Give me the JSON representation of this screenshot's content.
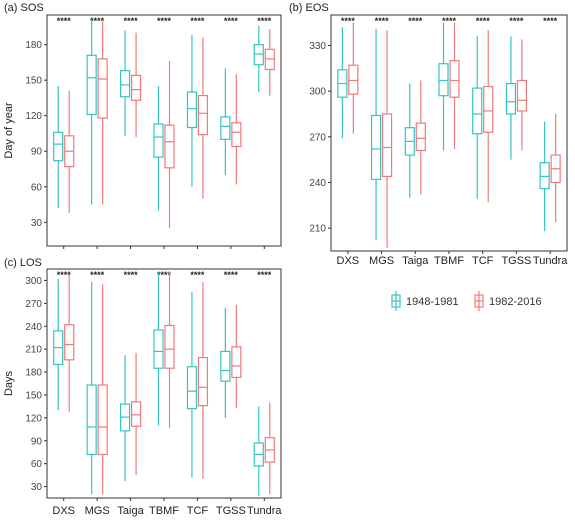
{
  "colors": {
    "series_1": "#35c4c4",
    "series_2": "#ef7b7b",
    "axis": "#333333",
    "grid": "#ebebeb"
  },
  "legend": {
    "items": [
      "1948-1981",
      "1982-2016"
    ]
  },
  "chart_data": [
    {
      "type": "boxplot",
      "title": "(a) SOS",
      "ylabel": "Day of year",
      "ylim": [
        10,
        205
      ],
      "yticks": [
        "30",
        "60",
        "90",
        "120",
        "150",
        "180"
      ],
      "categories": [
        "DXS",
        "MGS",
        "Taiga",
        "TBMF",
        "TCF",
        "TGSS",
        "Tundra"
      ],
      "show_x_ticklabels": false,
      "significance": [
        "****",
        "****",
        "****",
        "****",
        "****",
        "****",
        "****"
      ],
      "series": [
        {
          "name": "1948-1981",
          "boxes": [
            {
              "min": 42,
              "q1": 82,
              "median": 96,
              "q3": 106,
              "max": 145
            },
            {
              "min": 45,
              "q1": 121,
              "median": 152,
              "q3": 171,
              "max": 201
            },
            {
              "min": 103,
              "q1": 136,
              "median": 146,
              "q3": 158,
              "max": 192
            },
            {
              "min": 40,
              "q1": 85,
              "median": 102,
              "q3": 113,
              "max": 145
            },
            {
              "min": 60,
              "q1": 110,
              "median": 126,
              "q3": 140,
              "max": 188
            },
            {
              "min": 70,
              "q1": 100,
              "median": 111,
              "q3": 119,
              "max": 160
            },
            {
              "min": 140,
              "q1": 163,
              "median": 172,
              "q3": 180,
              "max": 196
            }
          ]
        },
        {
          "name": "1982-2016",
          "boxes": [
            {
              "min": 38,
              "q1": 77,
              "median": 90,
              "q3": 103,
              "max": 141
            },
            {
              "min": 45,
              "q1": 118,
              "median": 151,
              "q3": 168,
              "max": 200
            },
            {
              "min": 102,
              "q1": 133,
              "median": 142,
              "q3": 154,
              "max": 190
            },
            {
              "min": 25,
              "q1": 76,
              "median": 98,
              "q3": 112,
              "max": 166
            },
            {
              "min": 50,
              "q1": 104,
              "median": 122,
              "q3": 137,
              "max": 186
            },
            {
              "min": 62,
              "q1": 94,
              "median": 106,
              "q3": 114,
              "max": 155
            },
            {
              "min": 137,
              "q1": 159,
              "median": 168,
              "q3": 176,
              "max": 193
            }
          ]
        }
      ]
    },
    {
      "type": "boxplot",
      "title": "(b) EOS",
      "ylabel": "",
      "ylim": [
        195,
        350
      ],
      "yticks": [
        "210",
        "240",
        "270",
        "300",
        "330"
      ],
      "categories": [
        "DXS",
        "MGS",
        "Taiga",
        "TBMF",
        "TCF",
        "TGSS",
        "Tundra"
      ],
      "show_x_ticklabels": true,
      "significance": [
        "****",
        "****",
        "****",
        "****",
        "****",
        "****",
        "****"
      ],
      "series": [
        {
          "name": "1948-1981",
          "boxes": [
            {
              "min": 269,
              "q1": 296,
              "median": 305,
              "q3": 314,
              "max": 342
            },
            {
              "min": 202,
              "q1": 242,
              "median": 262,
              "q3": 284,
              "max": 341
            },
            {
              "min": 230,
              "q1": 258,
              "median": 267,
              "q3": 276,
              "max": 305
            },
            {
              "min": 261,
              "q1": 297,
              "median": 307,
              "q3": 318,
              "max": 345
            },
            {
              "min": 229,
              "q1": 272,
              "median": 285,
              "q3": 302,
              "max": 336
            },
            {
              "min": 255,
              "q1": 285,
              "median": 293,
              "q3": 305,
              "max": 336
            },
            {
              "min": 208,
              "q1": 236,
              "median": 244,
              "q3": 253,
              "max": 280
            }
          ]
        },
        {
          "name": "1982-2016",
          "boxes": [
            {
              "min": 272,
              "q1": 298,
              "median": 307,
              "q3": 317,
              "max": 345
            },
            {
              "min": 197,
              "q1": 244,
              "median": 263,
              "q3": 285,
              "max": 340
            },
            {
              "min": 232,
              "q1": 261,
              "median": 269,
              "q3": 279,
              "max": 307
            },
            {
              "min": 262,
              "q1": 296,
              "median": 307,
              "q3": 320,
              "max": 345
            },
            {
              "min": 227,
              "q1": 273,
              "median": 287,
              "q3": 303,
              "max": 340
            },
            {
              "min": 261,
              "q1": 287,
              "median": 294,
              "q3": 307,
              "max": 334
            },
            {
              "min": 214,
              "q1": 240,
              "median": 249,
              "q3": 258,
              "max": 285
            }
          ]
        }
      ]
    },
    {
      "type": "boxplot",
      "title": "(c) LOS",
      "ylabel": "Days",
      "ylim": [
        15,
        315
      ],
      "yticks": [
        "30",
        "60",
        "90",
        "120",
        "150",
        "180",
        "210",
        "240",
        "270",
        "300"
      ],
      "categories": [
        "DXS",
        "MGS",
        "Taiga",
        "TBMF",
        "TCF",
        "TGSS",
        "Tundra"
      ],
      "show_x_ticklabels": true,
      "significance": [
        "****",
        "****",
        "****",
        "****",
        "****",
        "****",
        "****"
      ],
      "series": [
        {
          "name": "1948-1981",
          "boxes": [
            {
              "min": 130,
              "q1": 190,
              "median": 212,
              "q3": 234,
              "max": 302
            },
            {
              "min": 20,
              "q1": 72,
              "median": 108,
              "q3": 163,
              "max": 298
            },
            {
              "min": 37,
              "q1": 103,
              "median": 121,
              "q3": 138,
              "max": 202
            },
            {
              "min": 110,
              "q1": 185,
              "median": 207,
              "q3": 235,
              "max": 310
            },
            {
              "min": 42,
              "q1": 132,
              "median": 155,
              "q3": 187,
              "max": 285
            },
            {
              "min": 120,
              "q1": 168,
              "median": 182,
              "q3": 207,
              "max": 264
            },
            {
              "min": 18,
              "q1": 57,
              "median": 72,
              "q3": 87,
              "max": 135
            }
          ]
        },
        {
          "name": "1982-2016",
          "boxes": [
            {
              "min": 128,
              "q1": 196,
              "median": 216,
              "q3": 242,
              "max": 308
            },
            {
              "min": 20,
              "q1": 72,
              "median": 108,
              "q3": 163,
              "max": 295
            },
            {
              "min": 45,
              "q1": 109,
              "median": 124,
              "q3": 141,
              "max": 205
            },
            {
              "min": 107,
              "q1": 185,
              "median": 210,
              "q3": 241,
              "max": 312
            },
            {
              "min": 40,
              "q1": 136,
              "median": 160,
              "q3": 199,
              "max": 298
            },
            {
              "min": 133,
              "q1": 173,
              "median": 188,
              "q3": 213,
              "max": 268
            },
            {
              "min": 20,
              "q1": 62,
              "median": 78,
              "q3": 94,
              "max": 140
            }
          ]
        }
      ]
    }
  ]
}
